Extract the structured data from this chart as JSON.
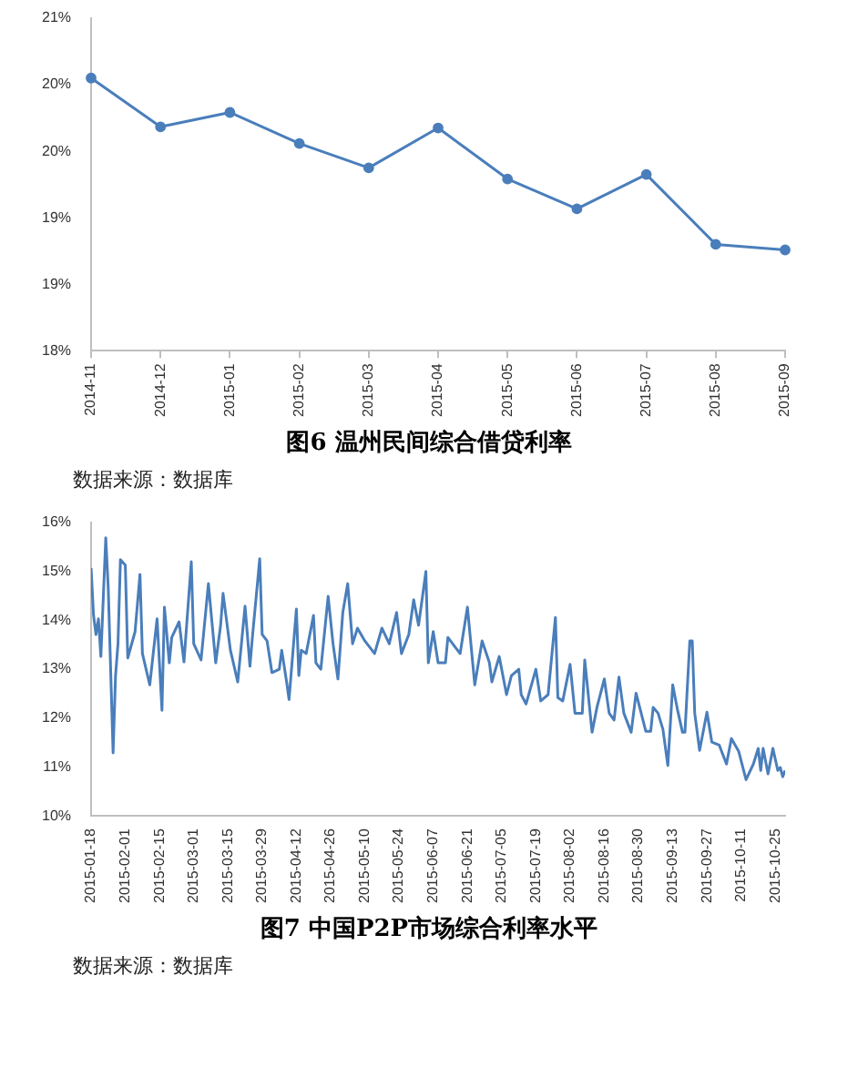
{
  "chart_data": [
    {
      "type": "line",
      "title": "图6 温州民间综合借贷利率",
      "annotations": [
        "数据来源：数据库"
      ],
      "categories": [
        "2014-11",
        "2014-12",
        "2015-01",
        "2015-02",
        "2015-03",
        "2015-04",
        "2015-05",
        "2015-06",
        "2015-07",
        "2015-08",
        "2015-09"
      ],
      "series": [
        {
          "color": "#4a7ebb",
          "values": [
            20.46,
            20.02,
            20.15,
            19.87,
            19.65,
            20.01,
            19.55,
            19.28,
            19.59,
            18.96,
            18.91
          ]
        }
      ],
      "ylim": [
        18,
        21
      ],
      "yticks": [
        {
          "value": 18,
          "label": "18%"
        },
        {
          "value": 18.6,
          "label": "19%"
        },
        {
          "value": 19.2,
          "label": "19%"
        },
        {
          "value": 19.8,
          "label": "20%"
        },
        {
          "value": 20.4,
          "label": "20%"
        },
        {
          "value": 21,
          "label": "21%"
        }
      ],
      "marker": "circle",
      "line_style": "solid"
    },
    {
      "type": "line",
      "title": "图7 中国P2P市场综合利率水平",
      "annotations": [
        "数据来源：数据库"
      ],
      "x": [
        "2015-01-18",
        "2015-01-19",
        "2015-01-20",
        "2015-01-21",
        "2015-01-22",
        "2015-01-24",
        "2015-01-25",
        "2015-01-27",
        "2015-01-28",
        "2015-01-29",
        "2015-01-30",
        "2015-02-01",
        "2015-02-02",
        "2015-02-05",
        "2015-02-07",
        "2015-02-08",
        "2015-02-11",
        "2015-02-14",
        "2015-02-16",
        "2015-02-17",
        "2015-02-19",
        "2015-02-20",
        "2015-02-23",
        "2015-02-25",
        "2015-02-28",
        "2015-03-01",
        "2015-03-04",
        "2015-03-07",
        "2015-03-10",
        "2015-03-12",
        "2015-03-13",
        "2015-03-16",
        "2015-03-19",
        "2015-03-22",
        "2015-03-24",
        "2015-03-25",
        "2015-03-28",
        "2015-03-29",
        "2015-03-31",
        "2015-04-02",
        "2015-04-05",
        "2015-04-06",
        "2015-04-08",
        "2015-04-09",
        "2015-04-12",
        "2015-04-13",
        "2015-04-14",
        "2015-04-16",
        "2015-04-19",
        "2015-04-20",
        "2015-04-22",
        "2015-04-25",
        "2015-04-27",
        "2015-04-29",
        "2015-05-01",
        "2015-05-03",
        "2015-05-05",
        "2015-05-07",
        "2015-05-10",
        "2015-05-14",
        "2015-05-17",
        "2015-05-20",
        "2015-05-23",
        "2015-05-25",
        "2015-05-28",
        "2015-05-30",
        "2015-06-01",
        "2015-06-04",
        "2015-06-05",
        "2015-06-07",
        "2015-06-09",
        "2015-06-12",
        "2015-06-13",
        "2015-06-16",
        "2015-06-18",
        "2015-06-21",
        "2015-06-24",
        "2015-06-27",
        "2015-06-30",
        "2015-07-01",
        "2015-07-04",
        "2015-07-07",
        "2015-07-09",
        "2015-07-12",
        "2015-07-13",
        "2015-07-15",
        "2015-07-19",
        "2015-07-21",
        "2015-07-24",
        "2015-07-27",
        "2015-07-28",
        "2015-07-30",
        "2015-08-02",
        "2015-08-04",
        "2015-08-07",
        "2015-08-08",
        "2015-08-11",
        "2015-08-13",
        "2015-08-16",
        "2015-08-18",
        "2015-08-20",
        "2015-08-22",
        "2015-08-24",
        "2015-08-27",
        "2015-08-29",
        "2015-09-02",
        "2015-09-04",
        "2015-09-05",
        "2015-09-07",
        "2015-09-09",
        "2015-09-11",
        "2015-09-13",
        "2015-09-15",
        "2015-09-17",
        "2015-09-18",
        "2015-09-20",
        "2015-09-21",
        "2015-09-22",
        "2015-09-24",
        "2015-09-27",
        "2015-09-29",
        "2015-10-02",
        "2015-10-05",
        "2015-10-07",
        "2015-10-10",
        "2015-10-13",
        "2015-10-16",
        "2015-10-18",
        "2015-10-19",
        "2015-10-20",
        "2015-10-22",
        "2015-10-24",
        "2015-10-26",
        "2015-10-27",
        "2015-10-28",
        "2015-10-29"
      ],
      "series": [
        {
          "color": "#4a7ebb",
          "values": [
            15.07,
            14.1,
            13.71,
            14.03,
            13.26,
            15.69,
            14.68,
            11.29,
            12.87,
            13.52,
            15.24,
            15.13,
            13.23,
            13.77,
            14.94,
            13.32,
            12.68,
            14.03,
            12.16,
            14.27,
            13.13,
            13.65,
            13.97,
            13.15,
            15.2,
            13.52,
            13.19,
            14.75,
            13.13,
            13.9,
            14.55,
            13.39,
            12.74,
            14.29,
            13.06,
            13.65,
            15.26,
            13.71,
            13.58,
            12.93,
            13.0,
            13.39,
            12.74,
            12.38,
            14.23,
            12.87,
            13.39,
            13.32,
            14.1,
            13.13,
            13.0,
            14.49,
            13.52,
            12.8,
            14.16,
            14.75,
            13.52,
            13.84,
            13.58,
            13.32,
            13.84,
            13.52,
            14.16,
            13.32,
            13.71,
            14.42,
            13.9,
            15.0,
            13.13,
            13.77,
            13.13,
            13.13,
            13.65,
            13.45,
            13.32,
            14.27,
            12.68,
            13.58,
            13.13,
            12.74,
            13.26,
            12.48,
            12.87,
            13.0,
            12.48,
            12.29,
            13.0,
            12.35,
            12.48,
            14.06,
            12.42,
            12.35,
            13.1,
            12.1,
            12.1,
            13.19,
            11.71,
            12.22,
            12.8,
            12.1,
            11.96,
            12.84,
            12.1,
            11.71,
            12.51,
            11.73,
            11.73,
            12.22,
            12.1,
            11.77,
            11.03,
            12.68,
            12.16,
            11.71,
            11.71,
            13.58,
            13.58,
            12.1,
            11.34,
            12.12,
            11.51,
            11.45,
            11.06,
            11.58,
            11.32,
            10.74,
            11.06,
            11.38,
            10.93,
            11.38,
            10.86,
            11.38,
            10.93,
            10.99,
            10.8,
            10.93
          ]
        }
      ],
      "xlim": [
        "2015-01-18",
        "2015-10-29"
      ],
      "xticks": [
        "2015-01-18",
        "2015-02-01",
        "2015-02-15",
        "2015-03-01",
        "2015-03-15",
        "2015-03-29",
        "2015-04-12",
        "2015-04-26",
        "2015-05-10",
        "2015-05-24",
        "2015-06-07",
        "2015-06-21",
        "2015-07-05",
        "2015-07-19",
        "2015-08-02",
        "2015-08-16",
        "2015-08-30",
        "2015-09-13",
        "2015-09-27",
        "2015-10-11",
        "2015-10-25"
      ],
      "ylim": [
        10,
        16
      ],
      "yticks": [
        {
          "value": 10,
          "label": "10%"
        },
        {
          "value": 11,
          "label": "11%"
        },
        {
          "value": 12,
          "label": "12%"
        },
        {
          "value": 13,
          "label": "13%"
        },
        {
          "value": 14,
          "label": "14%"
        },
        {
          "value": 15,
          "label": "15%"
        },
        {
          "value": 16,
          "label": "16%"
        }
      ],
      "marker": "none",
      "line_style": "solid"
    }
  ]
}
